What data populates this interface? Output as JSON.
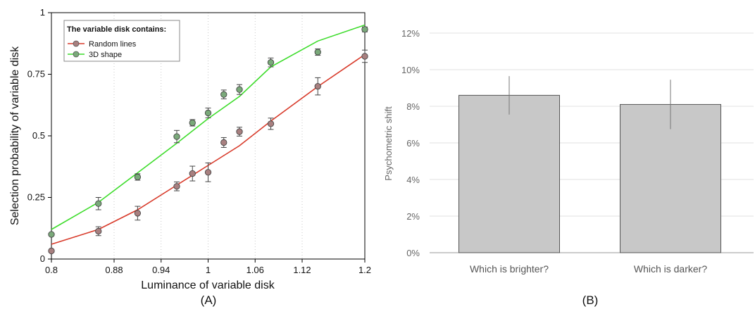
{
  "chart_data": [
    {
      "type": "line",
      "panel_label": "(A)",
      "xlabel": "Luminance of variable disk",
      "ylabel": "Selection probability of variable disk",
      "xlim": [
        0.8,
        1.2
      ],
      "ylim": [
        0,
        1
      ],
      "x_ticks": [
        "0.8",
        "0.88",
        "0.94",
        "1",
        "1.06",
        "1.12",
        "1.2"
      ],
      "x_tick_values": [
        0.8,
        0.88,
        0.94,
        1.0,
        1.06,
        1.12,
        1.2
      ],
      "y_ticks": [
        "0",
        "0.25",
        "0.5",
        "0.75",
        "1"
      ],
      "y_tick_values": [
        0,
        0.25,
        0.5,
        0.75,
        1.0
      ],
      "grid": "vertical dotted",
      "legend": {
        "title": "The variable disk contains:",
        "placement": "top-left",
        "entries": [
          "Random lines",
          "3D shape"
        ]
      },
      "series": [
        {
          "name": "Random lines",
          "line_color": "#d83a2a",
          "marker_color": "#a88080",
          "points": [
            {
              "x": 0.8,
              "y": 0.033,
              "err": 0.0
            },
            {
              "x": 0.86,
              "y": 0.113,
              "err": 0.018
            },
            {
              "x": 0.91,
              "y": 0.186,
              "err": 0.028
            },
            {
              "x": 0.96,
              "y": 0.295,
              "err": 0.018
            },
            {
              "x": 0.98,
              "y": 0.347,
              "err": 0.03
            },
            {
              "x": 1.0,
              "y": 0.352,
              "err": 0.038
            },
            {
              "x": 1.02,
              "y": 0.473,
              "err": 0.02
            },
            {
              "x": 1.04,
              "y": 0.517,
              "err": 0.018
            },
            {
              "x": 1.08,
              "y": 0.549,
              "err": 0.023
            },
            {
              "x": 1.14,
              "y": 0.701,
              "err": 0.035
            },
            {
              "x": 1.2,
              "y": 0.823,
              "err": 0.025
            }
          ],
          "fit": [
            [
              0.8,
              0.06
            ],
            [
              0.86,
              0.12
            ],
            [
              0.91,
              0.2
            ],
            [
              0.96,
              0.3
            ],
            [
              1.0,
              0.38
            ],
            [
              1.04,
              0.46
            ],
            [
              1.08,
              0.56
            ],
            [
              1.14,
              0.7
            ],
            [
              1.2,
              0.83
            ]
          ]
        },
        {
          "name": "3D shape",
          "line_color": "#3ddc2b",
          "marker_color": "#7aa97a",
          "points": [
            {
              "x": 0.8,
              "y": 0.1,
              "err": 0.0
            },
            {
              "x": 0.86,
              "y": 0.225,
              "err": 0.025
            },
            {
              "x": 0.91,
              "y": 0.333,
              "err": 0.013
            },
            {
              "x": 0.96,
              "y": 0.497,
              "err": 0.025
            },
            {
              "x": 0.98,
              "y": 0.553,
              "err": 0.013
            },
            {
              "x": 1.0,
              "y": 0.593,
              "err": 0.02
            },
            {
              "x": 1.02,
              "y": 0.668,
              "err": 0.018
            },
            {
              "x": 1.04,
              "y": 0.688,
              "err": 0.02
            },
            {
              "x": 1.08,
              "y": 0.798,
              "err": 0.018
            },
            {
              "x": 1.14,
              "y": 0.84,
              "err": 0.013
            },
            {
              "x": 1.2,
              "y": 0.932,
              "err": 0.01
            }
          ],
          "fit": [
            [
              0.8,
              0.12
            ],
            [
              0.86,
              0.23
            ],
            [
              0.91,
              0.35
            ],
            [
              0.96,
              0.47
            ],
            [
              1.0,
              0.57
            ],
            [
              1.04,
              0.66
            ],
            [
              1.08,
              0.78
            ],
            [
              1.14,
              0.885
            ],
            [
              1.2,
              0.95
            ]
          ]
        }
      ]
    },
    {
      "type": "bar",
      "panel_label": "(B)",
      "xlabel": "",
      "ylabel": "Psychometric shift",
      "ylim": [
        0,
        12
      ],
      "y_ticks": [
        "0%",
        "2%",
        "4%",
        "6%",
        "8%",
        "10%",
        "12%"
      ],
      "y_tick_values": [
        0,
        2,
        4,
        6,
        8,
        10,
        12
      ],
      "grid": "horizontal",
      "bar_color": "#c8c8c8",
      "categories": [
        "Which is brighter?",
        "Which is darker?"
      ],
      "values": [
        8.6,
        8.1
      ],
      "errors": [
        1.05,
        1.35
      ]
    }
  ]
}
